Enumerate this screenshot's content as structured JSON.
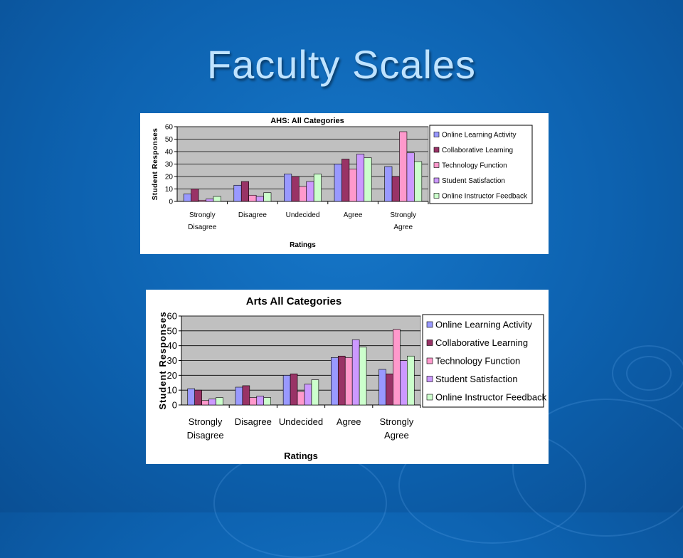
{
  "slide": {
    "title": "Faculty Scales"
  },
  "legend_colors": [
    "#9999ff",
    "#993366",
    "#ff99cc",
    "#cc99ff",
    "#ccffcc"
  ],
  "chart_data": [
    {
      "type": "bar",
      "title": "AHS: All Categories",
      "xlabel": "Ratings",
      "ylabel": "Student Responses",
      "ylim": [
        0,
        60
      ],
      "yticks": [
        "0",
        "10",
        "20",
        "30",
        "40",
        "50",
        "60"
      ],
      "categories": [
        [
          "Strongly",
          "Disagree"
        ],
        [
          "Disagree"
        ],
        [
          "Undecided"
        ],
        [
          "Agree"
        ],
        [
          "Strongly",
          "Agree"
        ]
      ],
      "grid": true,
      "legend_position": "right",
      "series": [
        {
          "name": "Online Learning Activity",
          "values": [
            6,
            13,
            22,
            30,
            28
          ]
        },
        {
          "name": "Collaborative Learning",
          "values": [
            10,
            16,
            20,
            34,
            20
          ]
        },
        {
          "name": "Technology Function",
          "values": [
            1,
            5,
            12,
            26,
            56
          ]
        },
        {
          "name": "Student Satisfaction",
          "values": [
            2,
            4,
            16,
            38,
            39
          ]
        },
        {
          "name": "Online Instructor Feedback",
          "values": [
            4,
            7,
            22,
            35,
            32
          ]
        }
      ]
    },
    {
      "type": "bar",
      "title": "Arts All Categories",
      "xlabel": "Ratings",
      "ylabel": "Student Responses",
      "ylim": [
        0,
        60
      ],
      "yticks": [
        "0",
        "10",
        "20",
        "30",
        "40",
        "50",
        "60"
      ],
      "categories": [
        [
          "Strongly",
          "Disagree"
        ],
        [
          "Disagree"
        ],
        [
          "Undecided"
        ],
        [
          "Agree"
        ],
        [
          "Strongly",
          "Agree"
        ]
      ],
      "grid": true,
      "legend_position": "right",
      "series": [
        {
          "name": "Online Learning Activity",
          "values": [
            11,
            12,
            20,
            32,
            24
          ]
        },
        {
          "name": "Collaborative Learning",
          "values": [
            10,
            13,
            21,
            33,
            21
          ]
        },
        {
          "name": "Technology Function",
          "values": [
            3,
            5,
            9,
            32,
            51
          ]
        },
        {
          "name": "Student Satisfaction",
          "values": [
            4,
            6,
            14,
            44,
            30
          ]
        },
        {
          "name": "Online Instructor Feedback",
          "values": [
            5,
            5,
            17,
            39,
            33
          ]
        }
      ]
    }
  ]
}
